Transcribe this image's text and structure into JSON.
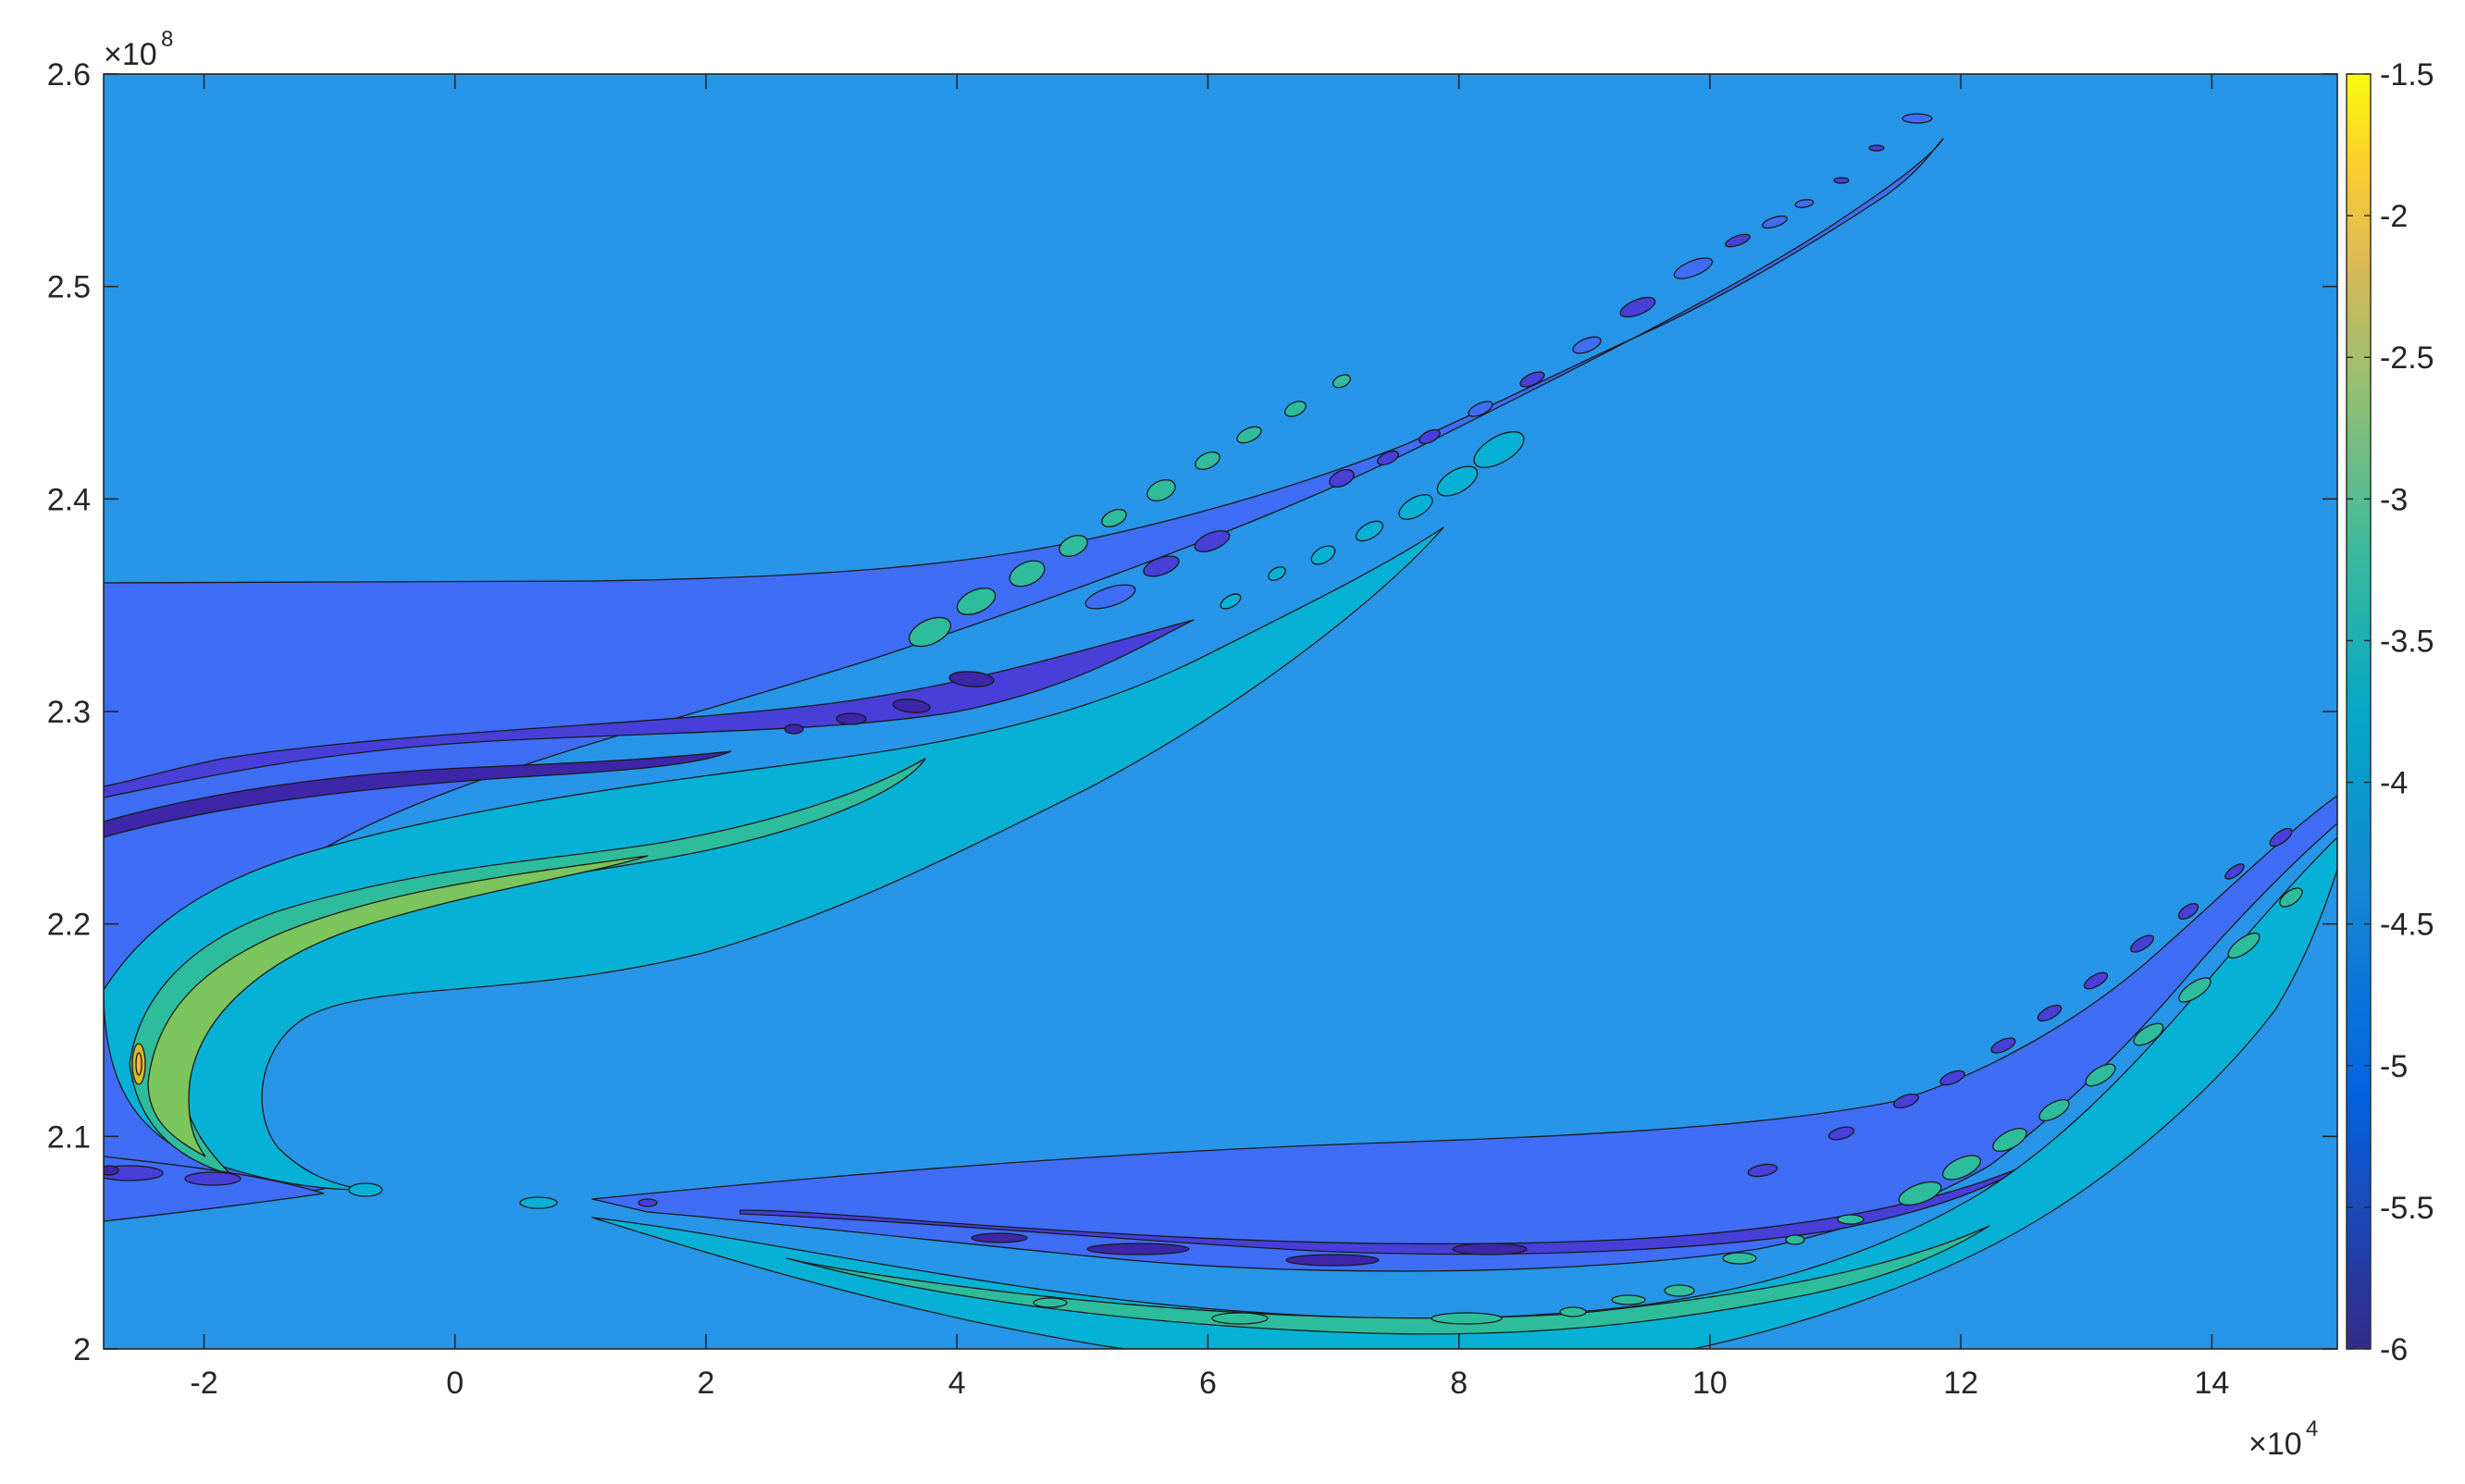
{
  "chart_data": {
    "type": "contourf",
    "title": "",
    "xlabel": "",
    "ylabel": "",
    "xlim": [
      -2.8,
      15
    ],
    "ylim": [
      2.0,
      2.6
    ],
    "x_exponent_label": "×10",
    "x_exponent_power": "4",
    "y_exponent_label": "×10",
    "y_exponent_power": "8",
    "x_ticks": [
      -2,
      0,
      2,
      4,
      6,
      8,
      10,
      12,
      14
    ],
    "x_tick_labels": [
      "-2",
      "0",
      "2",
      "4",
      "6",
      "8",
      "10",
      "12",
      "14"
    ],
    "y_ticks": [
      2.0,
      2.1,
      2.2,
      2.3,
      2.4,
      2.5,
      2.6
    ],
    "y_tick_labels": [
      "2",
      "2.1",
      "2.2",
      "2.3",
      "2.4",
      "2.5",
      "2.6"
    ],
    "colorbar": {
      "range": [
        -6,
        -1.5
      ],
      "ticks": [
        -1.5,
        -2,
        -2.5,
        -3,
        -3.5,
        -4,
        -4.5,
        -5,
        -5.5,
        -6
      ],
      "tick_labels": [
        "-1.5",
        "-2",
        "-2.5",
        "-3",
        "-3.5",
        "-4",
        "-4.5",
        "-5",
        "-5.5",
        "-6"
      ],
      "colormap": "parula"
    },
    "levels": [
      {
        "value": -6.0,
        "color": "#3d26a8"
      },
      {
        "value": -5.5,
        "color": "#473fd8"
      },
      {
        "value": -5.0,
        "color": "#3f6df5"
      },
      {
        "value": -4.5,
        "color": "#2796e8"
      },
      {
        "value": -4.0,
        "color": "#07b1d6"
      },
      {
        "value": -3.5,
        "color": "#2ebd9c"
      },
      {
        "value": -3.0,
        "color": "#7bc55c"
      },
      {
        "value": -2.5,
        "color": "#d4b931"
      },
      {
        "value": -2.0,
        "color": "#fcbd3b"
      }
    ],
    "background_level": -4.5,
    "features": [
      {
        "name": "upper-ridge",
        "description": "band from x=-2.8 at y about 2.14 to x about 12 at y about 2.59",
        "min_level": -6.0,
        "max_level": -2.0,
        "peak_location": [
          -2.55,
          2.135
        ]
      },
      {
        "name": "lower-ridge",
        "description": "band from x about 1 at y about 2.07 through x about 7 at y about 2.01 rising to x=15 at y about 2.25",
        "min_level": -6.0,
        "max_level": -3.5
      }
    ]
  }
}
